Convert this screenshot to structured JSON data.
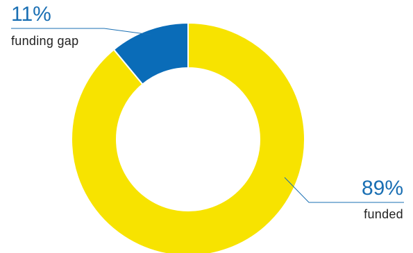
{
  "chart_data": {
    "type": "pie",
    "variant": "donut",
    "title": "",
    "slices": [
      {
        "label": "funding gap",
        "value": 11,
        "display": "11%",
        "color": "#0a6cb8"
      },
      {
        "label": "funded",
        "value": 89,
        "display": "89%",
        "color": "#f7e300"
      }
    ],
    "label_color": "#1a6fb3",
    "leader_line_color": "#1a6fb3"
  }
}
